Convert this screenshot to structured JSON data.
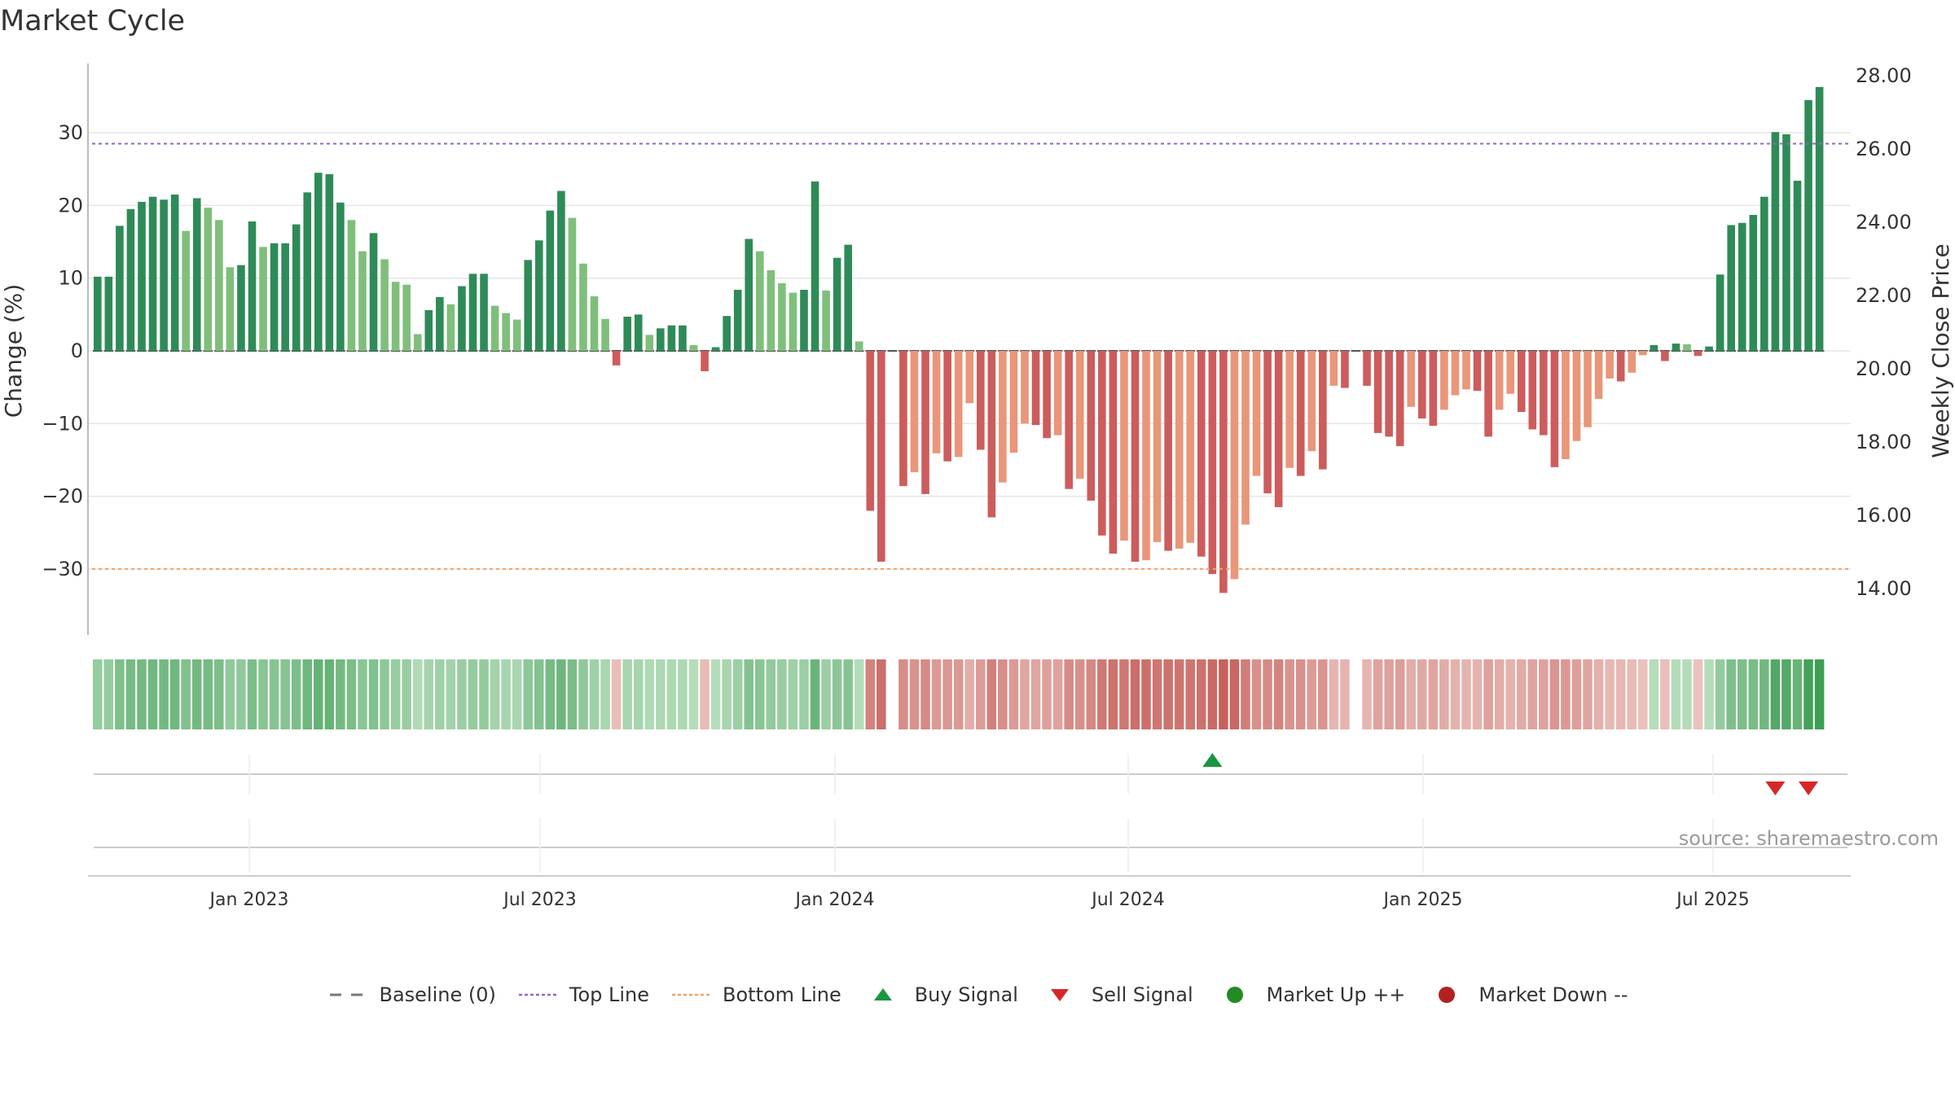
{
  "chart_data": {
    "type": "bar",
    "title": "Market Cycle",
    "ylabel": "Change (%)",
    "y2label": "Weekly Close Price",
    "ylim": [
      -39,
      39
    ],
    "y2lim": [
      13.0,
      28.0
    ],
    "yticks": [
      -30,
      -20,
      -10,
      0,
      10,
      20,
      30
    ],
    "y2ticks": [
      "14.00",
      "16.00",
      "18.00",
      "20.00",
      "22.00",
      "24.00",
      "26.00",
      "28.00"
    ],
    "x_ticks": [
      "Jan 2023",
      "Jul 2023",
      "Jan 2024",
      "Jul 2024",
      "Jan 2025",
      "Jul 2025"
    ],
    "top_line": 28.5,
    "bottom_line": -30,
    "grid": true,
    "legend_position": "bottom",
    "values": [
      10.2,
      10.2,
      17.2,
      19.5,
      20.5,
      21.2,
      20.8,
      21.5,
      16.5,
      21.0,
      19.7,
      18.0,
      11.5,
      11.8,
      17.8,
      14.3,
      14.8,
      14.8,
      17.4,
      21.8,
      24.5,
      24.3,
      20.4,
      18.0,
      13.7,
      16.2,
      12.6,
      9.5,
      9.1,
      2.3,
      5.6,
      7.4,
      6.4,
      8.9,
      10.6,
      10.6,
      6.2,
      5.2,
      4.3,
      12.5,
      15.2,
      19.3,
      22.0,
      18.3,
      12.0,
      7.5,
      4.4,
      -2.0,
      4.7,
      5.0,
      2.2,
      3.1,
      3.5,
      3.5,
      0.8,
      -2.8,
      0.5,
      4.8,
      8.4,
      15.4,
      13.7,
      11.1,
      9.3,
      8.0,
      8.4,
      23.3,
      8.3,
      12.8,
      14.6,
      1.3,
      -22.0,
      -29.0,
      0,
      -18.6,
      -16.7,
      -19.7,
      -14.1,
      -15.2,
      -14.6,
      -7.2,
      -13.6,
      -22.9,
      -18.1,
      -14.0,
      -10.0,
      -10.2,
      -12.0,
      -11.6,
      -19.0,
      -17.6,
      -20.6,
      -25.4,
      -27.9,
      -26.1,
      -29.0,
      -28.8,
      -26.3,
      -27.5,
      -27.2,
      -26.4,
      -28.3,
      -30.7,
      -33.3,
      -31.4,
      -23.9,
      -17.2,
      -19.6,
      -21.5,
      -16.1,
      -17.2,
      -13.8,
      -16.3,
      -4.8,
      -5.1,
      0,
      -4.8,
      -11.3,
      -11.8,
      -13.1,
      -7.7,
      -9.3,
      -10.3,
      -8.1,
      -6.1,
      -5.3,
      -5.5,
      -11.8,
      -8.1,
      -5.9,
      -8.4,
      -10.8,
      -11.6,
      -16.0,
      -14.9,
      -12.4,
      -10.5,
      -6.6,
      -3.8,
      -4.2,
      -3.0,
      -0.6,
      0.8,
      -1.4,
      1.0,
      0.9,
      -0.7,
      0.6,
      10.5,
      17.3,
      17.6,
      18.7,
      21.2,
      30.1,
      29.8,
      23.4,
      34.5,
      36.3
    ],
    "series": [
      {
        "name": "Baseline (0)",
        "color": "#777777"
      },
      {
        "name": "Top Line",
        "color": "#9467bd"
      },
      {
        "name": "Bottom Line",
        "color": "#f2a15f"
      },
      {
        "name": "Buy Signal",
        "color": "#1a9641"
      },
      {
        "name": "Sell Signal",
        "color": "#d62728"
      },
      {
        "name": "Market Up ++",
        "color": "#228b22"
      },
      {
        "name": "Market Down --",
        "color": "#b22222"
      }
    ],
    "buy_signal_indices": [
      101
    ],
    "sell_signal_indices": [
      152,
      155
    ],
    "source": "source: sharemaestro.com"
  }
}
